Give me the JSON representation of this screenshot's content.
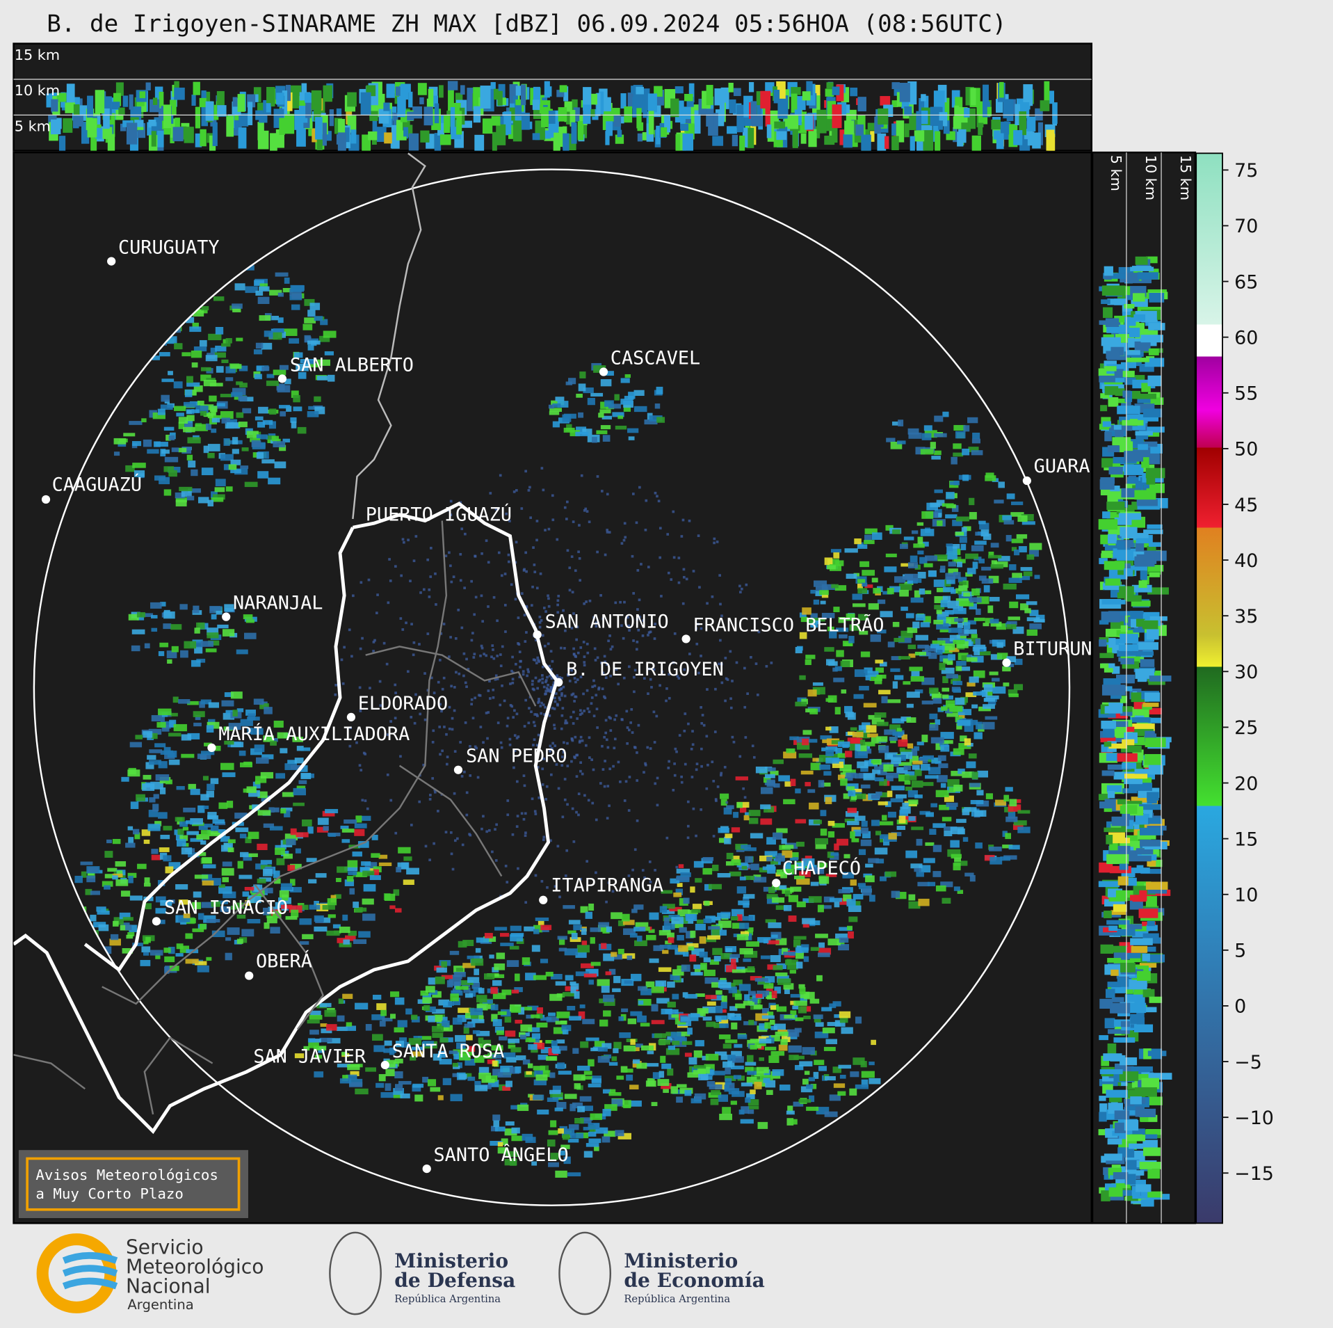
{
  "title": "B. de Irigoyen-SINARAME ZH MAX [dBZ] 06.09.2024 05:56HOA (08:56UTC)",
  "top_panel": {
    "height_labels": [
      "15 km",
      "10 km",
      "5 km"
    ]
  },
  "side_panel": {
    "height_labels": [
      "5 km",
      "10 km",
      "15 km"
    ]
  },
  "cities": [
    "CURUGUATY",
    "SAN ALBERTO",
    "CAAGUAZÚ",
    "NARANJAL",
    "PUERTO IGUAZÚ",
    "CASCAVEL",
    "SAN ANTONIO",
    "FRANCISCO BELTRÃO",
    "B. DE IRIGOYEN",
    "GUARAPUAVA",
    "BITURUNA",
    "ELDORADO",
    "MARÍA AUXILIADORA",
    "SAN PEDRO",
    "CHAPECÓ",
    "ITAPIRANGA",
    "SAN IGNACIO",
    "OBERÁ",
    "SAN JAVIER",
    "SANTA ROSA",
    "SANTO ÂNGELO"
  ],
  "colorbar": {
    "lim": [
      -19.5,
      76.5
    ],
    "ticks": [
      75,
      70,
      65,
      60,
      55,
      50,
      45,
      40,
      35,
      30,
      25,
      20,
      15,
      10,
      5,
      0,
      {
        "value": -5,
        "label": "−5"
      },
      {
        "value": -10,
        "label": "−10"
      },
      {
        "value": -15,
        "label": "−15"
      }
    ]
  },
  "notice": {
    "lines": [
      "Avisos Meteorológicos",
      "a Muy Corto Plazo"
    ]
  },
  "logos": {
    "smn": [
      "Servicio",
      "Meteorológico",
      "Nacional",
      "Argentina"
    ],
    "defensa": [
      "Ministerio",
      "de Defensa",
      "República Argentina"
    ],
    "economia": [
      "Ministerio",
      "de Economía",
      "República Argentina"
    ]
  }
}
